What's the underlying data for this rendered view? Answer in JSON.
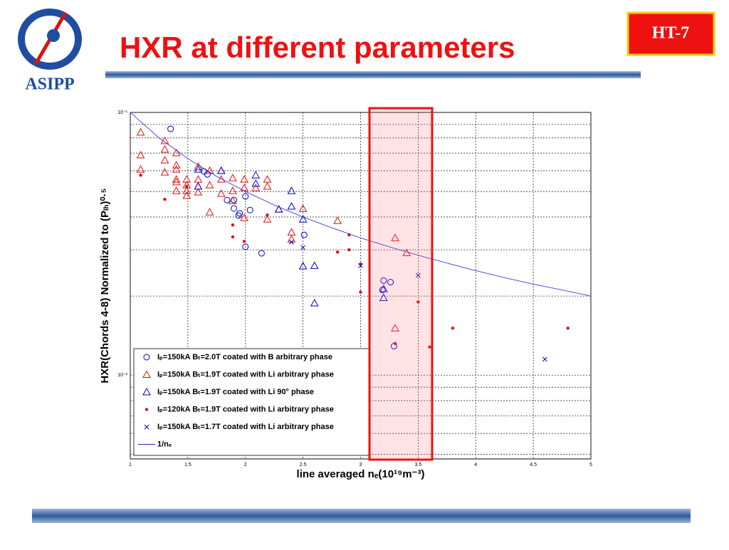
{
  "header": {
    "title": "HXR at different parameters",
    "logo_text": "ASIPP",
    "badge": "HT-7"
  },
  "chart_data": {
    "type": "scatter",
    "xlabel": "line averaged nₑ(10¹⁹m⁻³)",
    "ylabel": "HXR(Chords 4-8) Normalized to (Pₗₕ)⁰·⁵",
    "xlim": [
      1,
      5
    ],
    "xticks": [
      1,
      1.5,
      2,
      2.5,
      3,
      3.5,
      4,
      4.5,
      5
    ],
    "ylim": [
      0.0048,
      0.1
    ],
    "ylog": true,
    "yticks": [
      {
        "value": 0.01,
        "label": "10⁻²"
      },
      {
        "value": 0.1,
        "label": "10⁻¹"
      }
    ],
    "y_minor_grid": [
      0.005,
      0.006,
      0.007,
      0.008,
      0.009,
      0.02,
      0.03,
      0.04,
      0.05,
      0.06,
      0.07,
      0.08,
      0.09
    ],
    "grid": true,
    "legend": "lower left",
    "series": [
      {
        "name": "Iₚ=150kA Bₜ=2.0T coated with B arbitrary phase",
        "color": "#0000cc",
        "marker": "circle",
        "x": [
          1.35,
          1.64,
          1.67,
          1.84,
          1.9,
          1.9,
          1.94,
          1.95,
          2.0,
          2.04,
          2.0,
          2.14,
          2.51,
          3.2,
          3.26,
          3.19,
          3.29
        ],
        "values": [
          0.0866,
          0.0596,
          0.0581,
          0.0464,
          0.0464,
          0.0431,
          0.0405,
          0.0413,
          0.0479,
          0.0425,
          0.0308,
          0.0291,
          0.0342,
          0.0229,
          0.0226,
          0.0211,
          0.0129
        ]
      },
      {
        "name": "Iₚ=150kA Bₜ=1.9T coated with Li arbitrary phase",
        "color": "#dd1111",
        "marker": "triangle",
        "x": [
          1.09,
          1.09,
          1.09,
          1.3,
          1.3,
          1.3,
          1.3,
          1.4,
          1.4,
          1.4,
          1.4,
          1.4,
          1.4,
          1.49,
          1.49,
          1.49,
          1.49,
          1.59,
          1.59,
          1.59,
          1.59,
          1.69,
          1.69,
          1.69,
          1.79,
          1.79,
          1.79,
          1.89,
          1.89,
          1.89,
          1.99,
          1.99,
          1.99,
          2.09,
          2.19,
          2.19,
          2.19,
          2.29,
          2.4,
          2.4,
          2.5,
          2.8,
          3.3,
          3.4,
          3.3
        ],
        "values": [
          0.084,
          0.0688,
          0.0607,
          0.0779,
          0.0723,
          0.0658,
          0.0592,
          0.0701,
          0.063,
          0.0607,
          0.0556,
          0.0543,
          0.0503,
          0.0556,
          0.0529,
          0.0503,
          0.0482,
          0.0622,
          0.0556,
          0.0523,
          0.0497,
          0.06,
          0.0529,
          0.0417,
          0.06,
          0.0491,
          0.0556,
          0.0563,
          0.0503,
          0.0461,
          0.0556,
          0.0516,
          0.0397,
          0.0516,
          0.0556,
          0.0523,
          0.0392,
          0.0428,
          0.035,
          0.0329,
          0.043,
          0.0387,
          0.0333,
          0.0292,
          0.0151
        ]
      },
      {
        "name": "Iₚ=150kA Bₜ=1.9T coated with Li 90° phase",
        "color": "#0000cc",
        "marker": "triangle",
        "x": [
          1.59,
          1.59,
          1.79,
          2.09,
          2.09,
          2.29,
          2.4,
          2.4,
          2.5,
          2.5,
          2.6,
          2.6,
          3.2,
          3.2
        ],
        "values": [
          0.0607,
          0.0523,
          0.06,
          0.0577,
          0.0536,
          0.0428,
          0.0503,
          0.0439,
          0.0392,
          0.026,
          0.0261,
          0.0188,
          0.0197,
          0.0213
        ]
      },
      {
        "name": "Iₚ=120kA Bₜ=1.9T coated with Li arbitrary phase",
        "color": "#dd1111",
        "marker": "dot",
        "x": [
          1.09,
          1.3,
          1.49,
          1.89,
          1.89,
          1.99,
          2.19,
          2.8,
          2.9,
          2.9,
          3.0,
          3.0,
          3.3,
          3.5,
          3.6,
          3.8,
          4.8
        ],
        "values": [
          0.0577,
          0.0467,
          0.0523,
          0.0373,
          0.0336,
          0.0323,
          0.0407,
          0.0294,
          0.0342,
          0.03,
          0.0265,
          0.0207,
          0.0132,
          0.019,
          0.0128,
          0.0151,
          0.0151
        ]
      },
      {
        "name": "Iₚ=150kA Bₜ=1.7T coated with Li arbitrary phase",
        "color": "#0000cc",
        "marker": "cross",
        "x": [
          2.4,
          2.5,
          3.0,
          3.5,
          4.6
        ],
        "values": [
          0.0321,
          0.0306,
          0.0261,
          0.024,
          0.0115
        ]
      },
      {
        "name": "1/nₑ",
        "color": "#2222dd",
        "marker": "line",
        "x": [
          1,
          1.25,
          1.5,
          1.75,
          2,
          2.25,
          2.5,
          2.75,
          3,
          3.25,
          3.5,
          3.75,
          4,
          4.25,
          4.5,
          4.75,
          5
        ],
        "values": [
          0.1,
          0.08,
          0.0667,
          0.0571,
          0.05,
          0.0444,
          0.04,
          0.0364,
          0.0333,
          0.0308,
          0.0286,
          0.0267,
          0.025,
          0.0235,
          0.0222,
          0.0211,
          0.02
        ]
      }
    ]
  }
}
